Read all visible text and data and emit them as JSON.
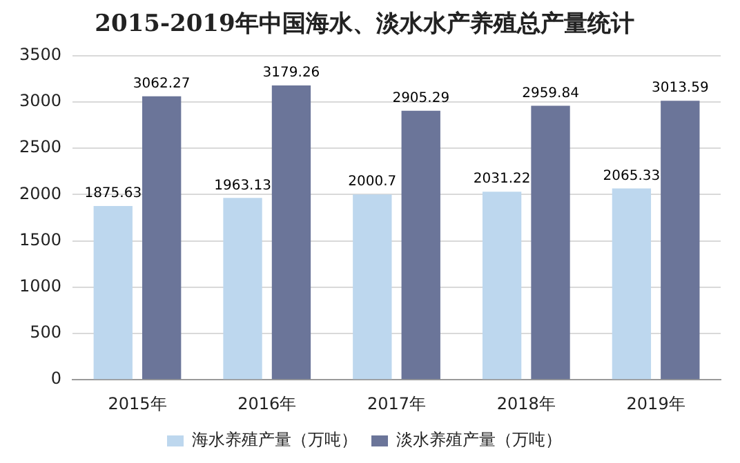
{
  "chart_data": {
    "type": "bar",
    "title": "2015-2019年中国海水、淡水水产养殖总产量统计",
    "categories": [
      "2015年",
      "2016年",
      "2017年",
      "2018年",
      "2019年"
    ],
    "series": [
      {
        "name": "海水养殖产量（万吨）",
        "color": "#bdd7ee",
        "values": [
          1875.63,
          1963.13,
          2000.7,
          2031.22,
          2065.33
        ]
      },
      {
        "name": "淡水养殖产量（万吨）",
        "color": "#6b7599",
        "values": [
          3062.27,
          3179.26,
          2905.29,
          2959.84,
          3013.59
        ]
      }
    ],
    "ylim": [
      0,
      3500
    ],
    "yticks": [
      0,
      500,
      1000,
      1500,
      2000,
      2500,
      3000,
      3500
    ],
    "grid": "y",
    "legend": "bottom",
    "data_labels": true
  }
}
